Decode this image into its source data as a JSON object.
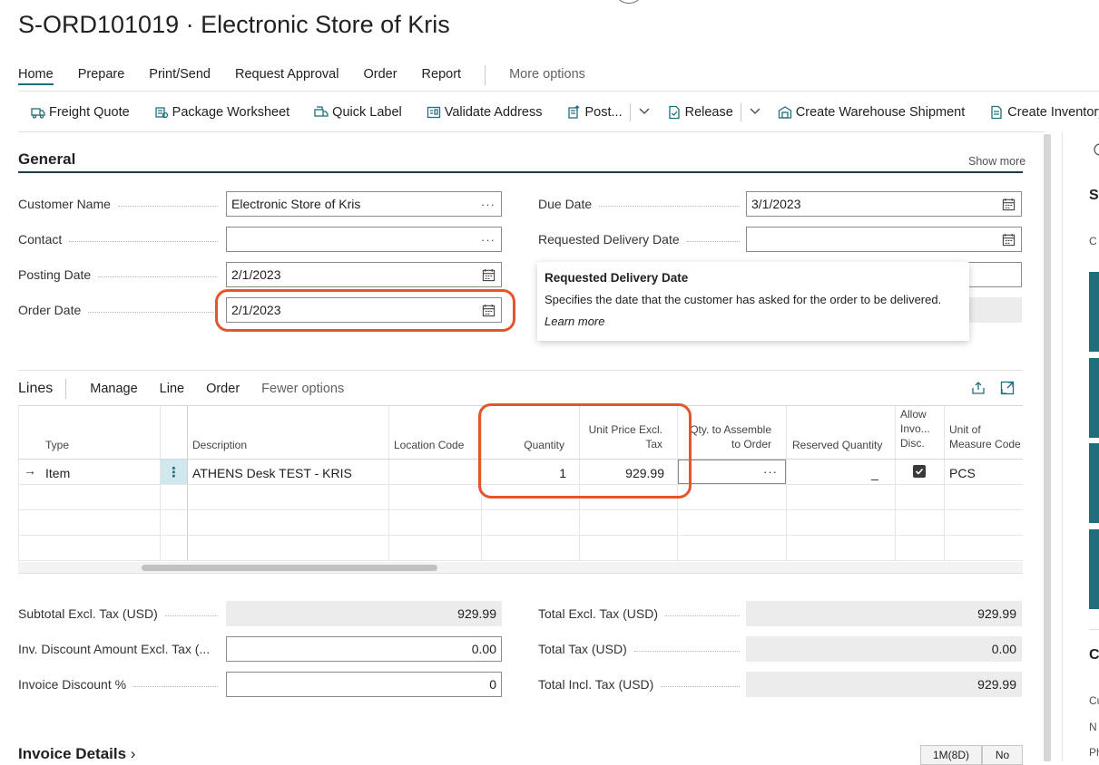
{
  "page_title": "S-ORD101019 · Electronic Store of Kris",
  "menu": {
    "items": [
      "Home",
      "Prepare",
      "Print/Send",
      "Request Approval",
      "Order",
      "Report"
    ],
    "more": "More options"
  },
  "actions": {
    "freight_quote": "Freight Quote",
    "package_worksheet": "Package Worksheet",
    "quick_label": "Quick Label",
    "validate_address": "Validate Address",
    "post": "Post...",
    "release": "Release",
    "create_warehouse_shipment": "Create Warehouse Shipment",
    "create_inventory_put": "Create Inventory Put-"
  },
  "general": {
    "title": "General",
    "show_more": "Show more",
    "customer_name_label": "Customer Name",
    "customer_name_value": "Electronic Store of Kris",
    "contact_label": "Contact",
    "contact_value": "",
    "posting_date_label": "Posting Date",
    "posting_date_value": "2/1/2023",
    "order_date_label": "Order Date",
    "order_date_value": "2/1/2023",
    "due_date_label": "Due Date",
    "due_date_value": "3/1/2023",
    "requested_delivery_label": "Requested Delivery Date",
    "requested_delivery_value": ""
  },
  "tooltip": {
    "title": "Requested Delivery Date",
    "body": "Specifies the date that the customer has asked for the order to be delivered.",
    "link": "Learn more"
  },
  "lines": {
    "title": "Lines",
    "menu": [
      "Manage",
      "Line",
      "Order"
    ],
    "fewer": "Fewer options",
    "columns": {
      "type": "Type",
      "description": "Description",
      "location_code": "Location Code",
      "quantity": "Quantity",
      "unit_price_1": "Unit Price Excl.",
      "unit_price_2": "Tax",
      "qty_assemble_1": "Qty. to Assemble",
      "qty_assemble_2": "to Order",
      "reserved_quantity": "Reserved Quantity",
      "allow_1": "Allow",
      "allow_2": "Invo...",
      "allow_3": "Disc.",
      "uom_1": "Unit of",
      "uom_2": "Measure Code"
    },
    "row": {
      "type": "Item",
      "description": "ATHENS Desk TEST - KRIS",
      "quantity": "1",
      "unit_price": "929.99",
      "reserved": "_",
      "uom": "PCS"
    }
  },
  "totals": {
    "subtotal_label": "Subtotal Excl. Tax (USD)",
    "subtotal_value": "929.99",
    "inv_discount_label": "Inv. Discount Amount Excl. Tax (...",
    "inv_discount_value": "0.00",
    "invoice_discount_pct_label": "Invoice Discount %",
    "invoice_discount_pct_value": "0",
    "total_excl_label": "Total Excl. Tax (USD)",
    "total_excl_value": "929.99",
    "total_tax_label": "Total Tax (USD)",
    "total_tax_value": "0.00",
    "total_incl_label": "Total Incl. Tax (USD)",
    "total_incl_value": "929.99"
  },
  "invoice_details": {
    "title": "Invoice Details",
    "btn1": "1M(8D)",
    "btn2": "No"
  },
  "right_edge": {
    "letters": [
      "S",
      "C",
      "C"
    ],
    "lower": [
      "Cu",
      "N",
      "Ph"
    ]
  },
  "colors": {
    "accent": "#1e6f7b",
    "highlight_ring": "#e4552c"
  }
}
